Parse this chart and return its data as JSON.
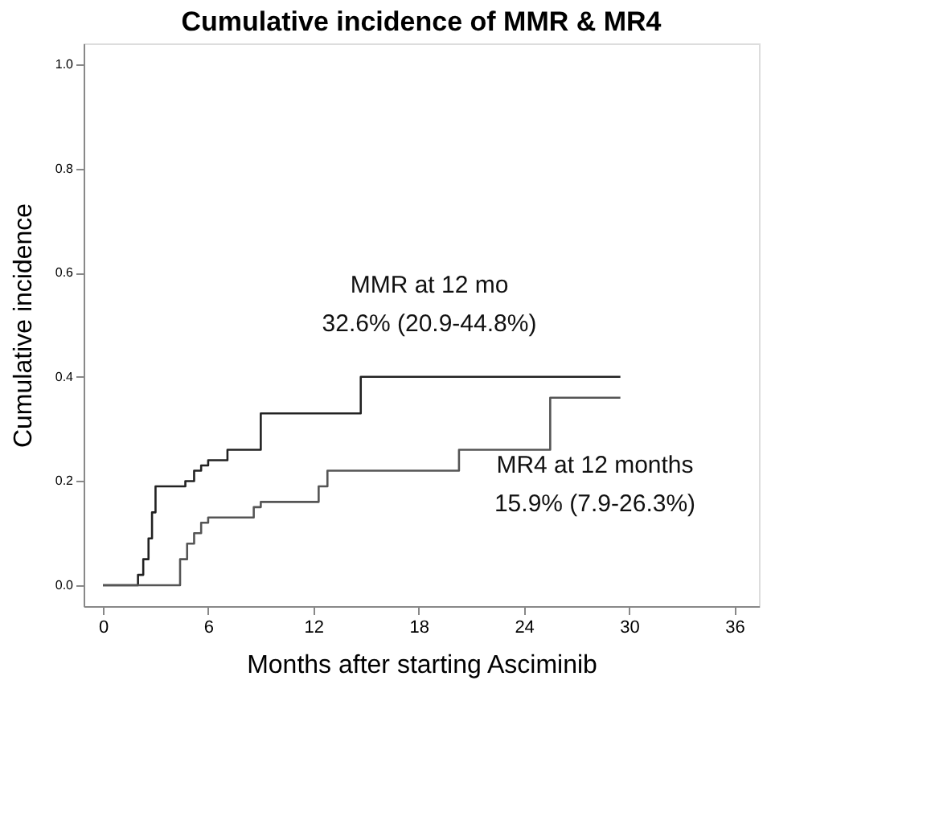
{
  "chart_data": {
    "type": "step",
    "title": "Cumulative incidence of MMR & MR4",
    "xlabel": "Months after starting Asciminib",
    "ylabel": "Cumulative incidence",
    "xlim": [
      -1.1,
      37.4
    ],
    "xticks": [
      0,
      6,
      12,
      18,
      24,
      30,
      36
    ],
    "ylim": [
      -0.04,
      1.04
    ],
    "yticks": [
      {
        "value": 0,
        "label": "0.0"
      },
      0.2,
      0.4,
      0.6,
      0.8,
      {
        "value": 1,
        "label": "1.0"
      }
    ],
    "grid": false,
    "marker": "none",
    "line_style": "solid",
    "series": [
      {
        "color": "#222222",
        "x": [
          0,
          2.0,
          2.3,
          2.6,
          2.8,
          3.0,
          4.7,
          5.2,
          5.6,
          6.0,
          7.1,
          9.0,
          14.7,
          29.5
        ],
        "values": [
          0,
          0.02,
          0.05,
          0.09,
          0.14,
          0.19,
          0.2,
          0.22,
          0.23,
          0.24,
          0.26,
          0.33,
          0.4,
          0.4
        ]
      },
      {
        "color": "#555555",
        "x": [
          0,
          4.4,
          4.8,
          5.2,
          5.6,
          6.0,
          8.6,
          9.0,
          12.3,
          12.8,
          20.3,
          25.5,
          29.5
        ],
        "values": [
          0,
          0.05,
          0.08,
          0.1,
          0.12,
          0.13,
          0.15,
          0.16,
          0.19,
          0.22,
          0.26,
          0.36,
          0.36
        ]
      }
    ],
    "annotations": [
      "MMR at 12 mo",
      "32.6% (20.9-44.8%)",
      "MR4 at 12 months",
      "15.9% (7.9-26.3%)"
    ]
  }
}
